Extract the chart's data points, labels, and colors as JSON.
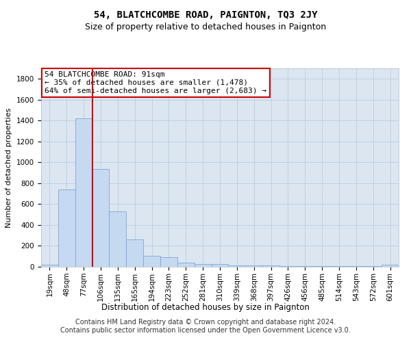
{
  "title1": "54, BLATCHCOMBE ROAD, PAIGNTON, TQ3 2JY",
  "title2": "Size of property relative to detached houses in Paignton",
  "xlabel": "Distribution of detached houses by size in Paignton",
  "ylabel": "Number of detached properties",
  "footnote": "Contains HM Land Registry data © Crown copyright and database right 2024.\nContains public sector information licensed under the Open Government Licence v3.0.",
  "categories": [
    "19sqm",
    "48sqm",
    "77sqm",
    "106sqm",
    "135sqm",
    "165sqm",
    "194sqm",
    "223sqm",
    "252sqm",
    "281sqm",
    "310sqm",
    "339sqm",
    "368sqm",
    "397sqm",
    "426sqm",
    "456sqm",
    "485sqm",
    "514sqm",
    "543sqm",
    "572sqm",
    "601sqm"
  ],
  "values": [
    20,
    740,
    1420,
    940,
    530,
    265,
    105,
    90,
    40,
    28,
    25,
    15,
    15,
    10,
    5,
    5,
    5,
    5,
    5,
    5,
    18
  ],
  "bar_color": "#c5d9f0",
  "bar_edgecolor": "#7ba7d4",
  "red_line_index": 2.5,
  "annotation_line1": "54 BLATCHCOMBE ROAD: 91sqm",
  "annotation_line2": "← 35% of detached houses are smaller (1,478)",
  "annotation_line3": "64% of semi-detached houses are larger (2,683) →",
  "annotation_box_color": "#ffffff",
  "annotation_box_edgecolor": "#cc0000",
  "ylim": [
    0,
    1900
  ],
  "yticks": [
    0,
    200,
    400,
    600,
    800,
    1000,
    1200,
    1400,
    1600,
    1800
  ],
  "plot_bg_color": "#dce6f1",
  "grid_color": "#c0cfe0",
  "title1_fontsize": 10,
  "title2_fontsize": 9,
  "xlabel_fontsize": 8.5,
  "ylabel_fontsize": 8,
  "footnote_fontsize": 7,
  "tick_fontsize": 7.5,
  "annotation_fontsize": 8
}
